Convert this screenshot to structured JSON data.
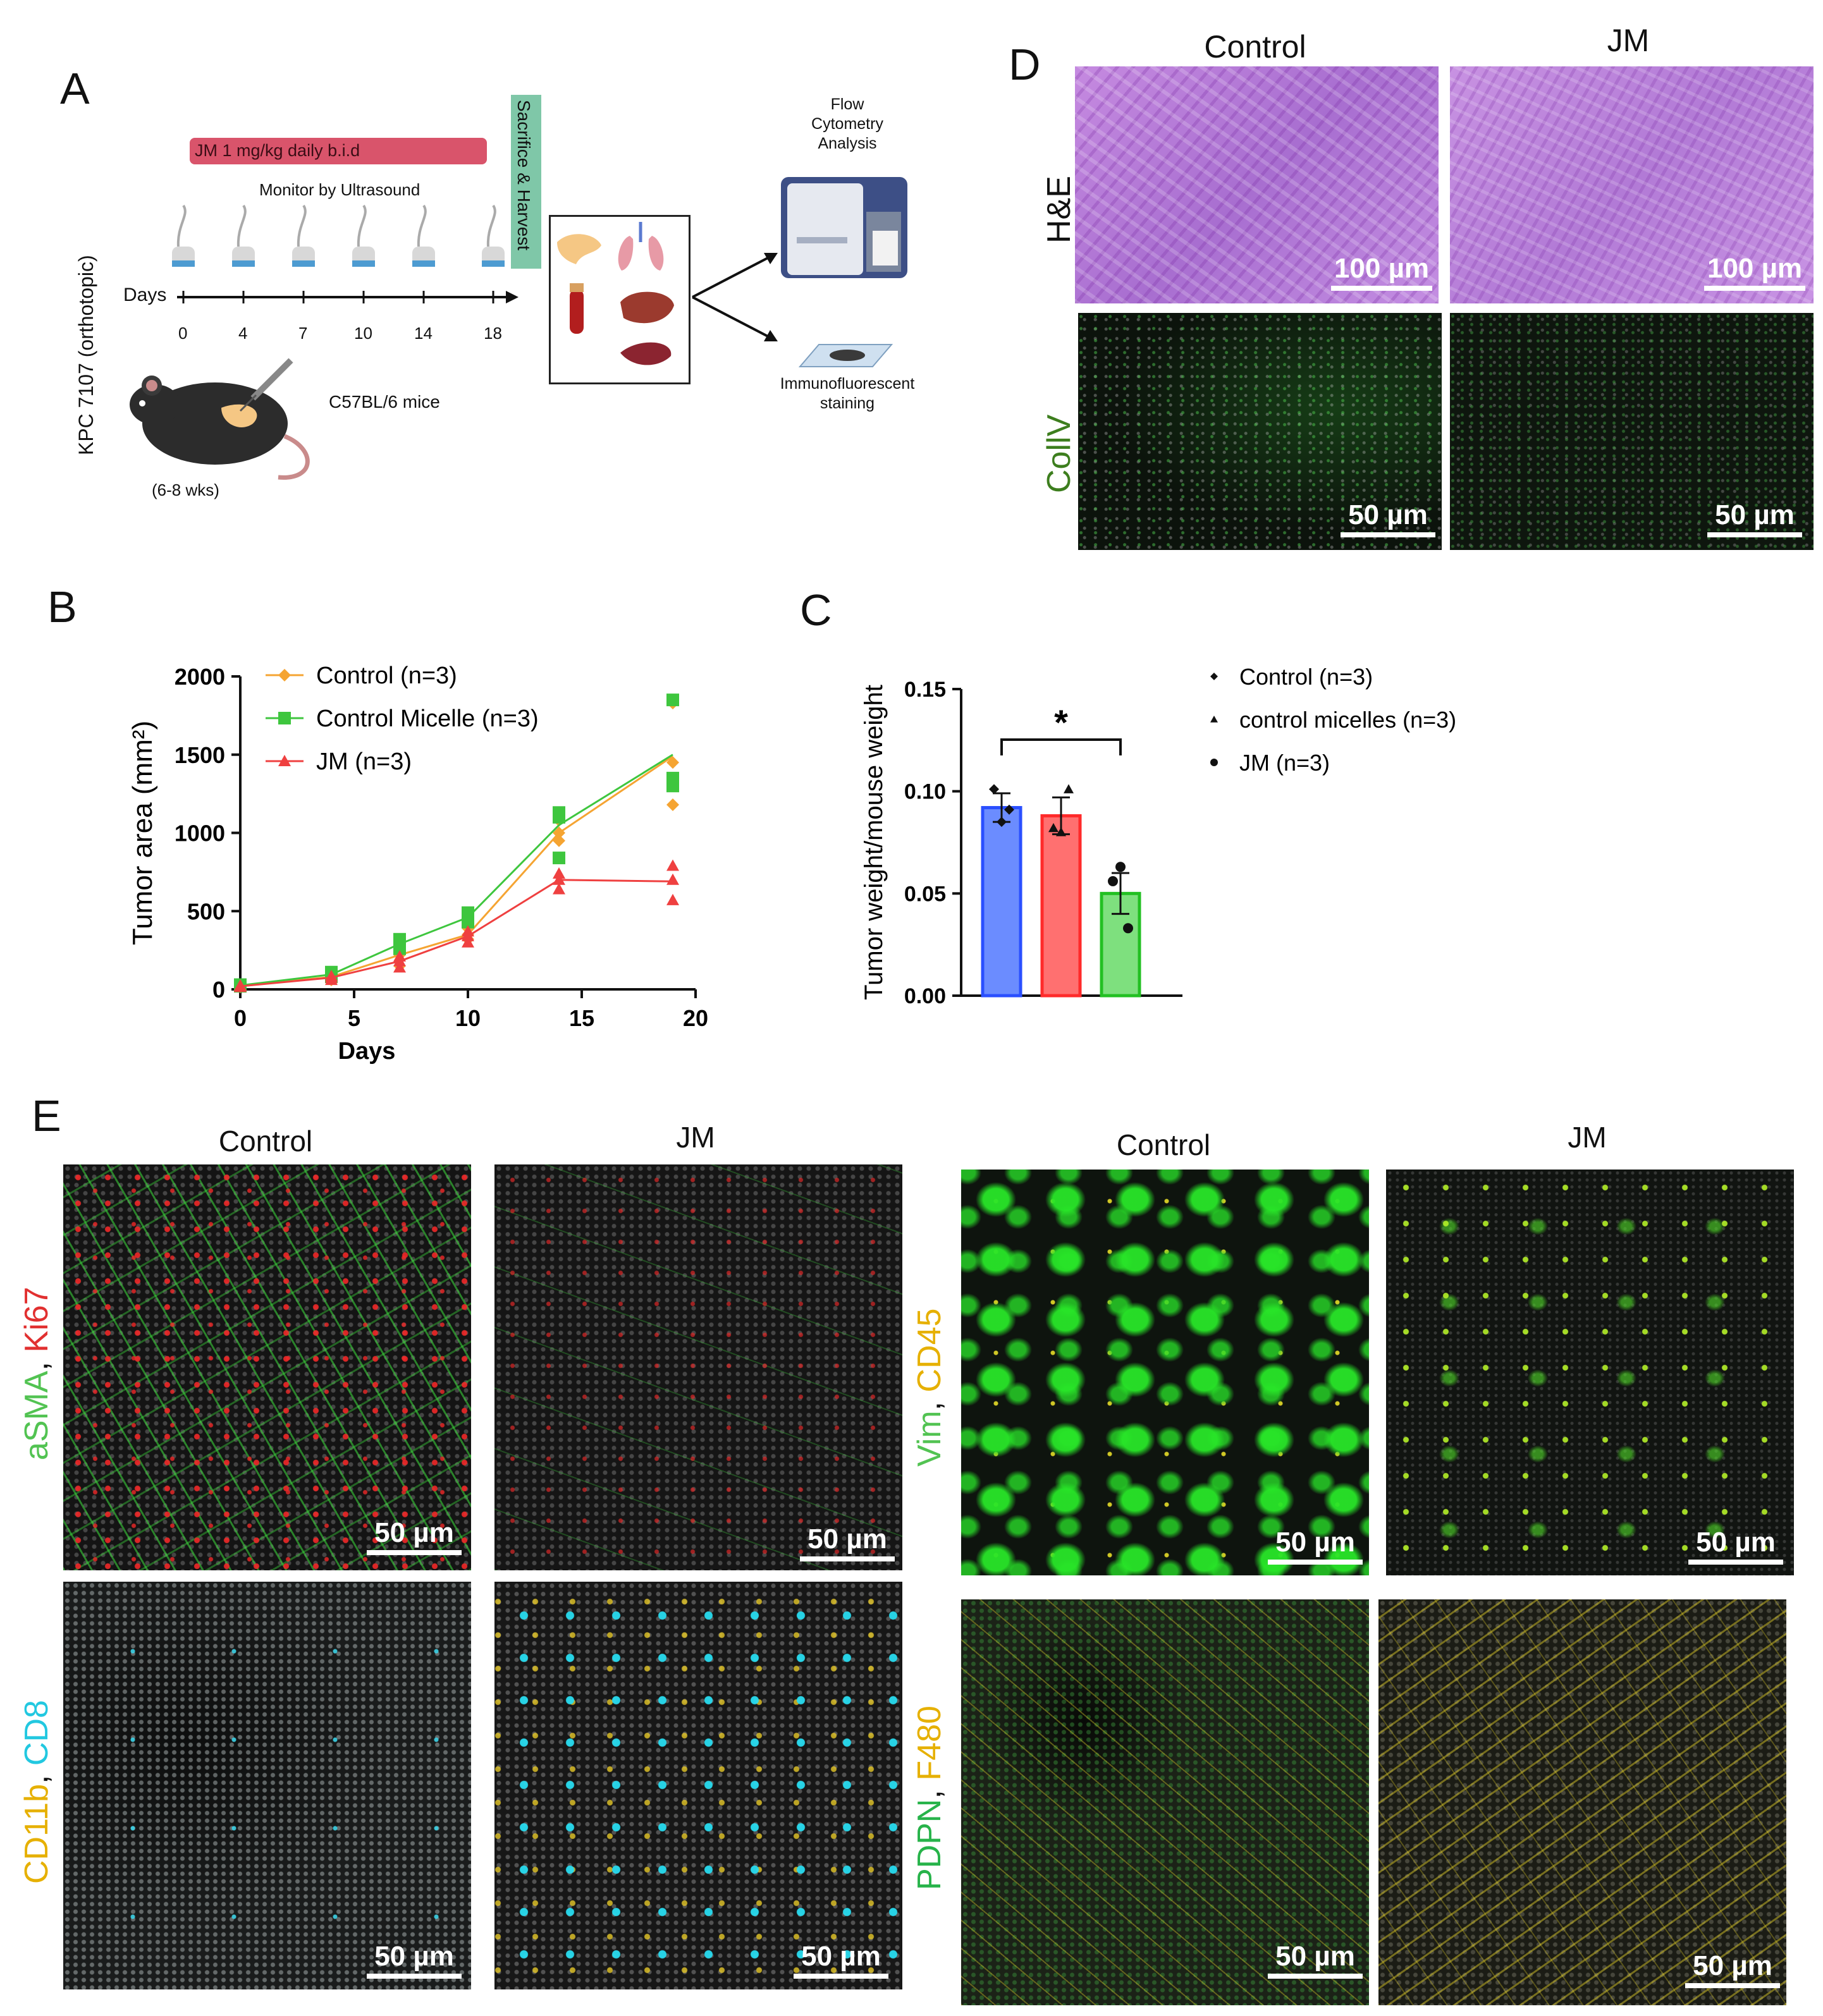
{
  "panels": {
    "A": {
      "letter": "A",
      "side_label": "KPC 7107 (orthotopic)",
      "treatment": "JM 1 mg/kg daily b.i.d",
      "monitor": "Monitor by Ultrasound",
      "days_label": "Days",
      "days": [
        "0",
        "4",
        "7",
        "10",
        "14",
        "18"
      ],
      "harvest": "Sacrifice & Harvest",
      "mouse_strain": "C57BL/6 mice",
      "age": "(6-8 wks)",
      "flow": "Flow Cytometry Analysis",
      "flow_lines": [
        "Flow",
        "Cytometry",
        "Analysis"
      ],
      "if": "Immunofluorescent staining",
      "if_lines": [
        "Immunofluorescent",
        "staining"
      ]
    },
    "B": {
      "letter": "B"
    },
    "C": {
      "letter": "C",
      "significance": "*"
    },
    "D": {
      "letter": "D",
      "col_labels": [
        "Control",
        "JM"
      ],
      "row_labels": [
        "H&E",
        "CollV"
      ],
      "scale_he": "100 µm",
      "scale_if": "50 µm"
    },
    "E": {
      "letter": "E",
      "left_cols": [
        "Control",
        "JM"
      ],
      "right_cols": [
        "Control",
        "JM"
      ],
      "row1_left": [
        "aSMA",
        ", ",
        "Ki67"
      ],
      "row2_left": [
        "CD11b",
        ", ",
        "CD8"
      ],
      "row1_right": [
        "Vim",
        ", ",
        "CD45"
      ],
      "row2_right": [
        "PDPN",
        ", ",
        "F480"
      ],
      "scale": "50 µm"
    }
  },
  "colors": {
    "treatment_bar": "#d9546b",
    "harvest_bar": "#7fc7a8",
    "he": "#b87fd6",
    "control": "#f5a432",
    "micelle": "#3ec63e",
    "jm": "#ef4040",
    "bar_control": "#6b8cff",
    "bar_micelle": "#ff7070",
    "bar_jm": "#7ee07e"
  },
  "chart_data": [
    {
      "id": "B",
      "type": "line",
      "xlabel": "Days",
      "ylabel": "Tumor area (mm²)",
      "xlim": [
        0,
        20
      ],
      "ylim": [
        0,
        2000
      ],
      "xticks": [
        "0",
        "5",
        "10",
        "15",
        "20"
      ],
      "yticks": [
        "0",
        "500",
        "1000",
        "1500",
        "2000"
      ],
      "legend_position": "top-left",
      "series": [
        {
          "name": "Control (n=3)",
          "marker": "diamond",
          "color": "#f5a432",
          "x": [
            0,
            4,
            7,
            10,
            14,
            19
          ],
          "mean": [
            20,
            80,
            220,
            350,
            1000,
            1490
          ],
          "points": [
            [
              0,
              20
            ],
            [
              0,
              15
            ],
            [
              0,
              25
            ],
            [
              4,
              60
            ],
            [
              4,
              80
            ],
            [
              4,
              95
            ],
            [
              7,
              150
            ],
            [
              7,
              220
            ],
            [
              7,
              270
            ],
            [
              10,
              320
            ],
            [
              10,
              350
            ],
            [
              10,
              390
            ],
            [
              14,
              950
            ],
            [
              14,
              1000
            ],
            [
              14,
              1080
            ],
            [
              19,
              1180
            ],
            [
              19,
              1450
            ],
            [
              19,
              1830
            ]
          ]
        },
        {
          "name": "Control Micelle (n=3)",
          "marker": "square",
          "color": "#3ec63e",
          "x": [
            0,
            4,
            7,
            10,
            14,
            19
          ],
          "mean": [
            25,
            95,
            290,
            460,
            1050,
            1500
          ],
          "points": [
            [
              0,
              25
            ],
            [
              0,
              20
            ],
            [
              0,
              30
            ],
            [
              4,
              80
            ],
            [
              4,
              100
            ],
            [
              4,
              110
            ],
            [
              7,
              260
            ],
            [
              7,
              300
            ],
            [
              7,
              320
            ],
            [
              10,
              430
            ],
            [
              10,
              470
            ],
            [
              10,
              490
            ],
            [
              14,
              840
            ],
            [
              14,
              1100
            ],
            [
              14,
              1130
            ],
            [
              19,
              1300
            ],
            [
              19,
              1350
            ],
            [
              19,
              1850
            ]
          ]
        },
        {
          "name": "JM (n=3)",
          "marker": "triangle",
          "color": "#ef4040",
          "x": [
            0,
            4,
            7,
            10,
            14,
            19
          ],
          "mean": [
            20,
            75,
            180,
            340,
            700,
            690
          ],
          "points": [
            [
              0,
              20
            ],
            [
              0,
              15
            ],
            [
              0,
              25
            ],
            [
              4,
              60
            ],
            [
              4,
              75
            ],
            [
              4,
              85
            ],
            [
              7,
              140
            ],
            [
              7,
              180
            ],
            [
              7,
              210
            ],
            [
              10,
              300
            ],
            [
              10,
              340
            ],
            [
              10,
              370
            ],
            [
              14,
              640
            ],
            [
              14,
              700
            ],
            [
              14,
              740
            ],
            [
              19,
              570
            ],
            [
              19,
              700
            ],
            [
              19,
              790
            ]
          ]
        }
      ]
    },
    {
      "id": "C",
      "type": "bar",
      "ylabel": "Tumor weight/mouse weight",
      "ylim": [
        0,
        0.15
      ],
      "yticks": [
        "0.00",
        "0.05",
        "0.10",
        "0.15"
      ],
      "legend_position": "right",
      "series": [
        {
          "name": "Control (n=3)",
          "marker": "diamond",
          "value": 0.092,
          "sem": 0.007,
          "points": [
            0.085,
            0.101,
            0.091
          ]
        },
        {
          "name": "control micelles (n=3)",
          "marker": "triangle",
          "value": 0.088,
          "sem": 0.009,
          "points": [
            0.08,
            0.082,
            0.101
          ]
        },
        {
          "name": "JM (n=3)",
          "marker": "circle",
          "value": 0.05,
          "sem": 0.01,
          "points": [
            0.063,
            0.056,
            0.033
          ]
        }
      ]
    }
  ]
}
